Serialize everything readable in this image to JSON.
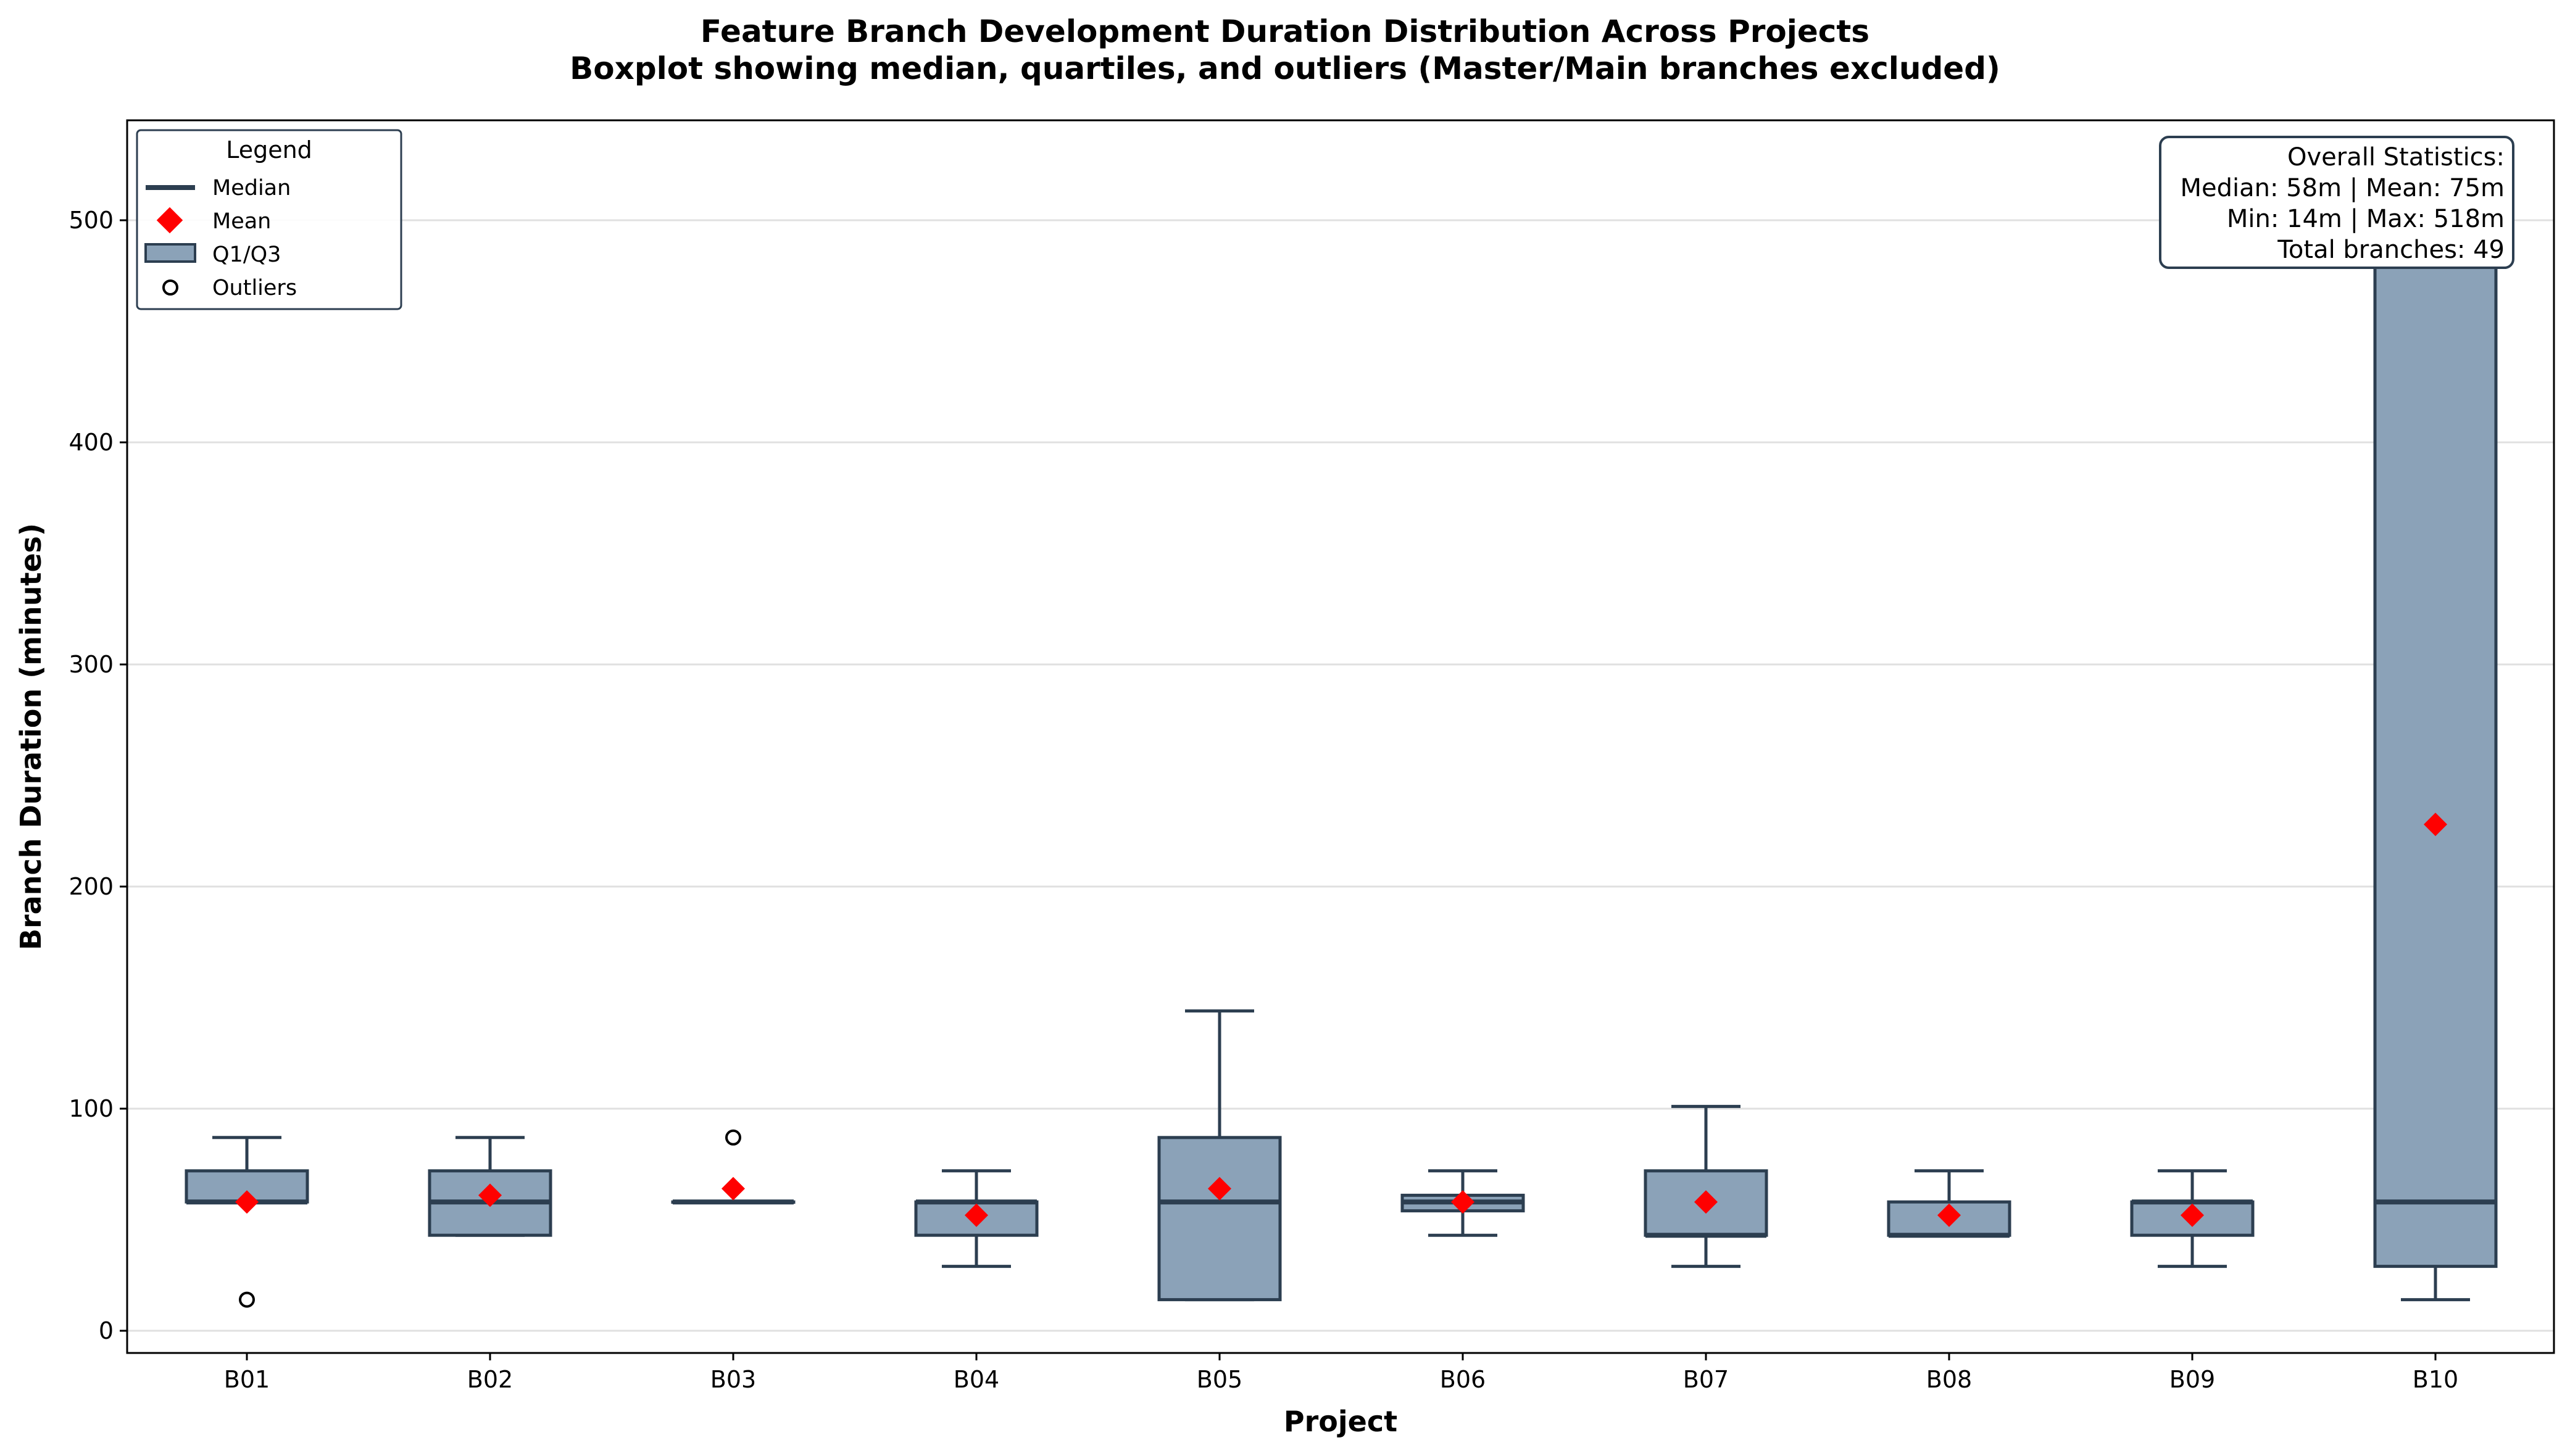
{
  "colors": {
    "box_fill": "#8ba2b8",
    "box_edge": "#2c3e50",
    "mean": "#ff0000",
    "grid": "#e0e0e0"
  },
  "legend": {
    "title": "Legend",
    "median": "Median",
    "mean": "Mean",
    "q1q3": "Q1/Q3",
    "outliers": "Outliers",
    "placement": "upper-left"
  },
  "stats_box": {
    "lines": [
      "Overall Statistics:",
      "Median: 58m | Mean: 75m",
      "Min: 14m | Max: 518m",
      "Total branches: 49"
    ],
    "placement": "upper-right"
  },
  "chart_data": {
    "type": "boxplot",
    "title_line1": "Feature Branch Development Duration Distribution Across Projects",
    "title_line2": "Boxplot showing median, quartiles, and outliers (Master/Main branches excluded)",
    "xlabel": "Project",
    "ylabel": "Branch Duration (minutes)",
    "ylim": [
      -10,
      545
    ],
    "yticks": [
      0,
      100,
      200,
      300,
      400,
      500
    ],
    "grid": "horizontal",
    "categories": [
      "B01",
      "B02",
      "B03",
      "B04",
      "B05",
      "B06",
      "B07",
      "B08",
      "B09",
      "B10"
    ],
    "boxes": [
      {
        "name": "B01",
        "whislo": 58,
        "q1": 58,
        "med": 58,
        "q3": 72,
        "whishi": 87,
        "mean": 58,
        "fliers": [
          14
        ]
      },
      {
        "name": "B02",
        "whislo": 43,
        "q1": 43,
        "med": 58,
        "q3": 72,
        "whishi": 87,
        "mean": 61,
        "fliers": []
      },
      {
        "name": "B03",
        "whislo": 58,
        "q1": 58,
        "med": 58,
        "q3": 58,
        "whishi": 58,
        "mean": 64,
        "fliers": [
          87
        ]
      },
      {
        "name": "B04",
        "whislo": 29,
        "q1": 43,
        "med": 58,
        "q3": 58,
        "whishi": 72,
        "mean": 52,
        "fliers": []
      },
      {
        "name": "B05",
        "whislo": 14,
        "q1": 14,
        "med": 58,
        "q3": 87,
        "whishi": 144,
        "mean": 64,
        "fliers": []
      },
      {
        "name": "B06",
        "whislo": 43,
        "q1": 54,
        "med": 58,
        "q3": 61,
        "whishi": 72,
        "mean": 58,
        "fliers": []
      },
      {
        "name": "B07",
        "whislo": 29,
        "q1": 43,
        "med": 43,
        "q3": 72,
        "whishi": 101,
        "mean": 58,
        "fliers": []
      },
      {
        "name": "B08",
        "whislo": 43,
        "q1": 43,
        "med": 43,
        "q3": 58,
        "whishi": 72,
        "mean": 52,
        "fliers": []
      },
      {
        "name": "B09",
        "whislo": 29,
        "q1": 43,
        "med": 58,
        "q3": 58,
        "whishi": 72,
        "mean": 52,
        "fliers": []
      },
      {
        "name": "B10",
        "whislo": 14,
        "q1": 29,
        "med": 58,
        "q3": 518,
        "whishi": 518,
        "mean": 228,
        "fliers": []
      }
    ]
  }
}
